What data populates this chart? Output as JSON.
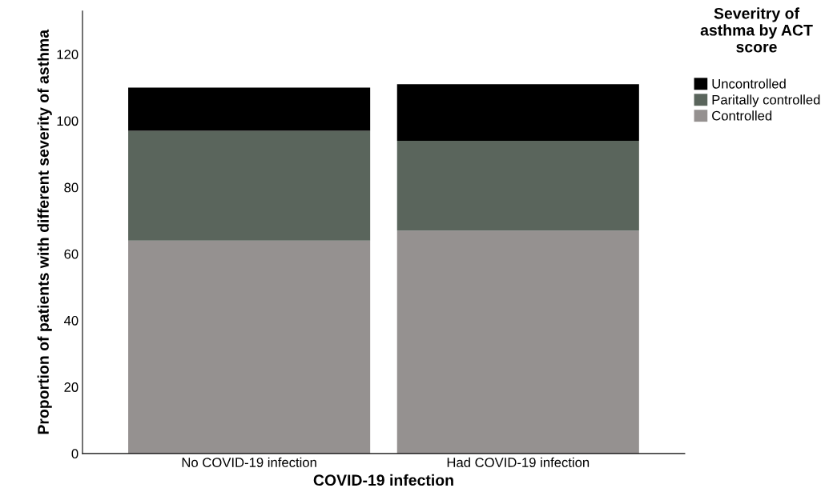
{
  "chart_data": {
    "type": "bar",
    "stacked": true,
    "xlabel": "COVID-19 infection",
    "ylabel": "Proportion of patients with different severity of asthma",
    "legend_title": "Severitry of asthma by ACT score",
    "categories": [
      "No COVID-19 infection",
      "Had COVID-19 infection"
    ],
    "series": [
      {
        "name": "Controlled",
        "color": "#959190",
        "values": [
          64,
          67
        ]
      },
      {
        "name": "Paritally controlled",
        "color": "#5a655c",
        "values": [
          33,
          27
        ]
      },
      {
        "name": "Uncontrolled",
        "color": "#000000",
        "values": [
          13,
          17
        ]
      }
    ],
    "ylim": [
      0,
      133
    ],
    "yticks": [
      0,
      20,
      40,
      60,
      80,
      100,
      120
    ],
    "grid": false,
    "legend": "top right"
  }
}
